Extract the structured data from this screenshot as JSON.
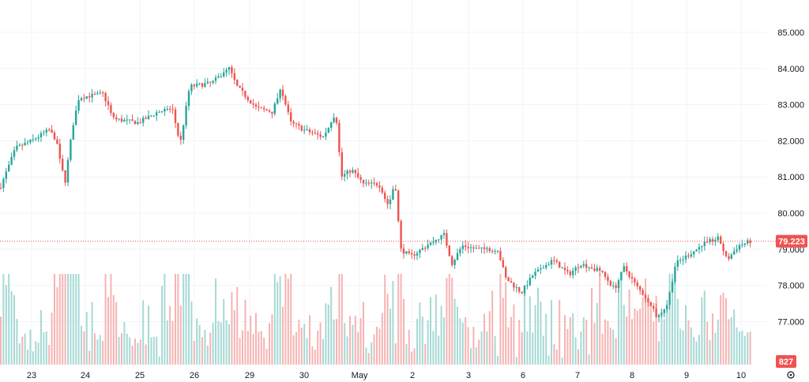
{
  "chart_data": {
    "type": "candlestick",
    "title": "",
    "xlabel": "",
    "ylabel": "",
    "ylim": [
      76.0,
      85.4
    ],
    "y_ticks": [
      "85.000",
      "84.000",
      "83.000",
      "82.000",
      "81.000",
      "80.000",
      "79.000",
      "78.000",
      "77.000"
    ],
    "x_ticks": [
      "23",
      "24",
      "25",
      "26",
      "29",
      "30",
      "May",
      "2",
      "3",
      "6",
      "7",
      "8",
      "9",
      "10"
    ],
    "grid": true,
    "colors": {
      "up": "#26a69a",
      "down": "#ef5350",
      "up_volume": "#a6d9d5",
      "down_volume": "#f6b4b3",
      "last_price_line": "#ef5350"
    },
    "last_price": {
      "label": "79.223",
      "value": 79.223
    },
    "volume_label": "827",
    "series": [
      {
        "segment": "23",
        "points": [
          [
            0,
            80.7
          ],
          [
            0.3,
            81.7
          ],
          [
            0.6,
            81.9
          ],
          [
            0.8,
            82.2
          ],
          [
            1.0,
            82.0
          ],
          [
            1.2,
            82.3
          ],
          [
            1.5,
            82.1
          ],
          [
            1.7,
            81.8
          ],
          [
            1.9,
            80.9
          ]
        ]
      },
      {
        "segment": "24",
        "points": [
          [
            0,
            81.0
          ],
          [
            0.2,
            82.1
          ],
          [
            0.4,
            83.0
          ],
          [
            0.7,
            83.2
          ],
          [
            0.9,
            83.4
          ],
          [
            1.0,
            82.6
          ]
        ]
      },
      {
        "segment": "25",
        "points": [
          [
            0,
            82.6
          ],
          [
            0.3,
            82.5
          ],
          [
            0.5,
            82.7
          ],
          [
            0.8,
            82.4
          ],
          [
            1.0,
            82.8
          ]
        ]
      },
      {
        "segment": "26",
        "points": [
          [
            0,
            82.8
          ],
          [
            0.3,
            82.9
          ],
          [
            0.6,
            83.0
          ],
          [
            0.8,
            82.2
          ],
          [
            1.0,
            83.6
          ]
        ]
      },
      {
        "segment": "26b",
        "points": [
          [
            0,
            83.5
          ],
          [
            0.3,
            83.6
          ],
          [
            0.6,
            83.8
          ],
          [
            0.8,
            84.0
          ],
          [
            1.0,
            83.8
          ]
        ]
      },
      {
        "segment": "29",
        "points": [
          [
            0,
            83.8
          ],
          [
            0.3,
            83.3
          ],
          [
            0.6,
            82.9
          ],
          [
            0.8,
            82.8
          ],
          [
            1.0,
            83.2
          ]
        ]
      },
      {
        "segment": "30",
        "points": [
          [
            0,
            83.4
          ],
          [
            0.3,
            82.5
          ],
          [
            0.6,
            82.3
          ],
          [
            0.8,
            82.1
          ],
          [
            1.0,
            82.6
          ]
        ]
      },
      {
        "segment": "May",
        "points": [
          [
            0,
            82.7
          ],
          [
            0.3,
            81.0
          ],
          [
            0.6,
            80.9
          ],
          [
            0.8,
            80.3
          ],
          [
            1.0,
            80.0
          ]
        ]
      },
      {
        "segment": "2",
        "points": [
          [
            0,
            79.0
          ],
          [
            0.3,
            78.9
          ],
          [
            0.6,
            79.2
          ],
          [
            0.8,
            79.3
          ],
          [
            1.0,
            78.7
          ]
        ]
      },
      {
        "segment": "3",
        "points": [
          [
            0,
            78.7
          ],
          [
            0.3,
            79.0
          ],
          [
            0.6,
            78.9
          ],
          [
            0.8,
            79.0
          ],
          [
            1.0,
            78.1
          ]
        ]
      },
      {
        "segment": "6",
        "points": [
          [
            0,
            78.0
          ],
          [
            0.3,
            77.7
          ],
          [
            0.6,
            78.3
          ],
          [
            0.8,
            78.6
          ],
          [
            1.0,
            78.3
          ]
        ]
      },
      {
        "segment": "7",
        "points": [
          [
            0,
            78.0
          ],
          [
            0.3,
            78.2
          ],
          [
            0.6,
            78.5
          ],
          [
            0.8,
            78.4
          ],
          [
            1.0,
            77.9
          ]
        ]
      },
      {
        "segment": "8",
        "points": [
          [
            0,
            78.4
          ],
          [
            0.3,
            78.0
          ],
          [
            0.6,
            77.4
          ],
          [
            0.8,
            77.1
          ],
          [
            1.0,
            77.4
          ]
        ]
      },
      {
        "segment": "9",
        "points": [
          [
            0,
            78.4
          ],
          [
            0.3,
            78.8
          ],
          [
            0.6,
            79.0
          ],
          [
            0.8,
            79.3
          ],
          [
            1.0,
            78.6
          ]
        ]
      },
      {
        "segment": "10",
        "points": [
          [
            0,
            78.9
          ],
          [
            0.3,
            79.1
          ],
          [
            0.6,
            79.2
          ],
          [
            0.8,
            79.22
          ]
        ]
      }
    ]
  }
}
